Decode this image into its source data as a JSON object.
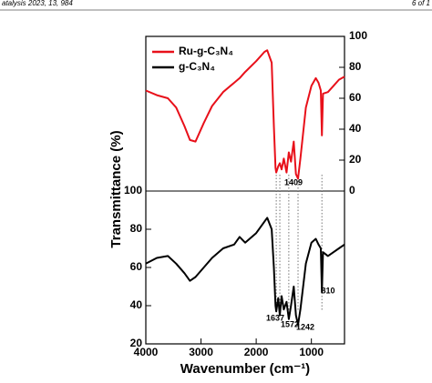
{
  "header": {
    "left": "atalysis 2023, 13, 984",
    "right": "6 of 1"
  },
  "chart_data": {
    "type": "line",
    "xlabel": "Wavenumber (cm⁻¹)",
    "ylabel": "Transmittance (%)",
    "xlim": [
      4000,
      400
    ],
    "xticks": [
      4000,
      3000,
      2000,
      1000
    ],
    "ylim": [
      20,
      100
    ],
    "yticks": [
      20,
      40,
      60,
      80,
      100
    ],
    "y2lim": [
      0,
      100
    ],
    "y2ticks": [
      0,
      20,
      40,
      60,
      80,
      100
    ],
    "x": [
      4000,
      3800,
      3600,
      3450,
      3300,
      3200,
      3100,
      2950,
      2800,
      2600,
      2400,
      2300,
      2200,
      2000,
      1850,
      1800,
      1720,
      1680,
      1650,
      1637,
      1600,
      1572,
      1540,
      1500,
      1450,
      1409,
      1370,
      1320,
      1280,
      1242,
      1200,
      1100,
      1000,
      920,
      870,
      830,
      810,
      790,
      700,
      600,
      500,
      400
    ],
    "series": [
      {
        "name": "Ru-g-C₃N₄",
        "color": "#e8101a",
        "axis": "y2",
        "values": [
          65,
          62,
          60,
          54,
          42,
          33,
          32,
          44,
          55,
          64,
          70,
          73,
          77,
          84,
          90,
          91,
          83,
          42,
          15,
          12,
          16,
          18,
          14,
          21,
          12,
          25,
          19,
          32,
          11,
          8,
          21,
          54,
          68,
          73,
          70,
          65,
          36,
          63,
          64,
          68,
          72,
          74
        ]
      },
      {
        "name": "g-C₃N₄",
        "color": "#000000",
        "axis": "y",
        "values": [
          62,
          65,
          66,
          62,
          57,
          53,
          55,
          60,
          65,
          70,
          72,
          76,
          73,
          78,
          84,
          86,
          80,
          60,
          40,
          37,
          44,
          35,
          45,
          38,
          42,
          33,
          40,
          50,
          35,
          30,
          38,
          62,
          73,
          75,
          72,
          70,
          47,
          68,
          66,
          68,
          70,
          72
        ]
      }
    ],
    "annotations": [
      {
        "text": "1637",
        "x": 1637
      },
      {
        "text": "1572",
        "x": 1572
      },
      {
        "text": "1409",
        "x": 1409
      },
      {
        "text": "1242",
        "x": 1242
      },
      {
        "text": "810",
        "x": 810
      }
    ]
  }
}
